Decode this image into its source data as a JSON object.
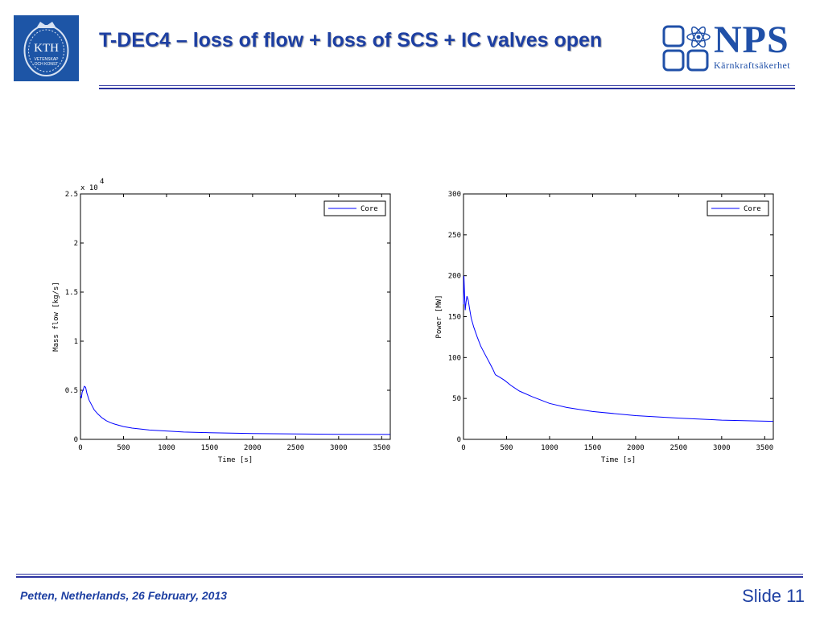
{
  "slide": {
    "title": "T-DEC4 – loss of flow + loss of SCS + IC valves open",
    "logo_left": {
      "lines": [
        "KTH",
        "VETENSKAP",
        "OCH KONST"
      ]
    },
    "logo_right": {
      "name": "NPS",
      "subtitle": "Kärnkraftsäkerhet"
    },
    "footer": "Petten, Netherlands, 26 February, 2013",
    "slide_number": "Slide 11"
  },
  "colors": {
    "accent": "#1d3fa2",
    "rule": "#2c33a0",
    "series": "#0000ff",
    "kth_blue": "#1d55a6"
  },
  "chart_data": [
    {
      "type": "line",
      "xlabel": "Time [s]",
      "ylabel": "Mass flow [kg/s]",
      "multiplier": "x 10",
      "multiplier_exp": "4",
      "xlim": [
        0,
        3600
      ],
      "ylim": [
        0,
        2.5
      ],
      "xticks": [
        0,
        500,
        1000,
        1500,
        2000,
        2500,
        3000,
        3500
      ],
      "yticks": [
        0,
        0.5,
        1,
        1.5,
        2,
        2.5
      ],
      "ytick_labels": [
        "0",
        "0.5",
        "1",
        "1.5",
        "2",
        "2.5"
      ],
      "legend_position": "top-right",
      "series": [
        {
          "name": "Core",
          "x": [
            0,
            10,
            20,
            30,
            45,
            60,
            75,
            100,
            130,
            160,
            200,
            250,
            300,
            350,
            400,
            500,
            600,
            800,
            1000,
            1200,
            1500,
            2000,
            2500,
            3000,
            3600
          ],
          "y": [
            0.45,
            0.42,
            0.48,
            0.5,
            0.54,
            0.53,
            0.47,
            0.4,
            0.35,
            0.3,
            0.26,
            0.22,
            0.19,
            0.17,
            0.155,
            0.13,
            0.115,
            0.095,
            0.085,
            0.075,
            0.068,
            0.06,
            0.055,
            0.052,
            0.05
          ]
        }
      ]
    },
    {
      "type": "line",
      "xlabel": "Time [s]",
      "ylabel": "Power [MW]",
      "xlim": [
        0,
        3600
      ],
      "ylim": [
        0,
        300
      ],
      "xticks": [
        0,
        500,
        1000,
        1500,
        2000,
        2500,
        3000,
        3500
      ],
      "yticks": [
        0,
        50,
        100,
        150,
        200,
        250,
        300
      ],
      "ytick_labels": [
        "0",
        "50",
        "100",
        "150",
        "200",
        "250",
        "300"
      ],
      "legend_position": "top-right",
      "series": [
        {
          "name": "Core",
          "x": [
            0,
            5,
            12,
            20,
            30,
            40,
            55,
            70,
            90,
            120,
            160,
            200,
            250,
            300,
            340,
            370,
            420,
            480,
            550,
            650,
            800,
            1000,
            1200,
            1500,
            2000,
            2500,
            3000,
            3600
          ],
          "y": [
            165,
            200,
            178,
            158,
            168,
            175,
            170,
            160,
            148,
            137,
            125,
            114,
            104,
            94,
            86,
            79,
            76,
            72,
            66,
            59,
            52,
            44,
            39,
            34,
            29,
            26,
            23.5,
            22
          ]
        }
      ]
    }
  ]
}
